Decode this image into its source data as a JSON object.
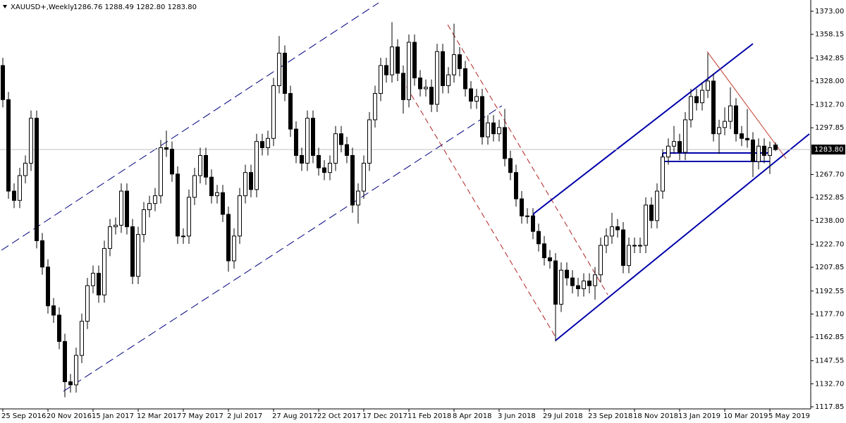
{
  "chart_data": {
    "type": "candlestick",
    "symbol": "XAUUSD+,Weekly",
    "quote": "1286.76 1288.49 1282.80 1283.80",
    "bid": {
      "value": 1283.8,
      "label": "1283.80"
    },
    "categories": [
      "25 Sep 2016",
      null,
      null,
      null,
      null,
      null,
      null,
      null,
      "20 Nov 2016",
      null,
      null,
      null,
      null,
      null,
      null,
      null,
      "15 Jan 2017",
      null,
      null,
      null,
      null,
      null,
      null,
      null,
      "12 Mar 2017",
      null,
      null,
      null,
      null,
      null,
      null,
      null,
      "7 May 2017",
      null,
      null,
      null,
      null,
      null,
      null,
      null,
      "2 Jul 2017",
      null,
      null,
      null,
      null,
      null,
      null,
      null,
      "27 Aug 2017",
      null,
      null,
      null,
      null,
      null,
      null,
      null,
      "22 Oct 2017",
      null,
      null,
      null,
      null,
      null,
      null,
      null,
      "17 Dec 2017",
      null,
      null,
      null,
      null,
      null,
      null,
      null,
      "11 Feb 2018",
      null,
      null,
      null,
      null,
      null,
      null,
      null,
      "8 Apr 2018",
      null,
      null,
      null,
      null,
      null,
      null,
      null,
      "3 Jun 2018",
      null,
      null,
      null,
      null,
      null,
      null,
      null,
      "29 Jul 2018",
      null,
      null,
      null,
      null,
      null,
      null,
      null,
      "23 Sep 2018",
      null,
      null,
      null,
      null,
      null,
      null,
      null,
      "18 Nov 2018",
      null,
      null,
      null,
      null,
      null,
      null,
      null,
      "13 Jan 2019",
      null,
      null,
      null,
      null,
      null,
      null,
      null,
      "10 Mar 2019",
      null,
      null,
      null,
      null,
      null,
      null,
      null,
      "5 May 2019",
      null
    ],
    "open": [
      1338,
      1316,
      1257,
      1251,
      1267,
      1275,
      1304,
      1225,
      1208,
      1183,
      1177,
      1160,
      1134,
      1132,
      1151,
      1173,
      1196,
      1204,
      1190,
      1220,
      1234,
      1235,
      1257,
      1234,
      1202,
      1229,
      1245,
      1249,
      1254,
      1285,
      1284,
      1268,
      1228,
      1228,
      1253,
      1267,
      1280,
      1266,
      1254,
      1256,
      1242,
      1212,
      1228,
      1254,
      1269,
      1258,
      1289,
      1285,
      1291,
      1325,
      1346,
      1320,
      1297,
      1280,
      1275,
      1304,
      1280,
      1272,
      1269,
      1275,
      1294,
      1287,
      1280,
      1248,
      1257,
      1275,
      1303,
      1320,
      1338,
      1332,
      1350,
      1333,
      1316,
      1353,
      1330,
      1323,
      1324,
      1313,
      1347,
      1325,
      1332,
      1345,
      1336,
      1323,
      1315,
      1318,
      1292,
      1301,
      1294,
      1298,
      1278,
      1269,
      1252,
      1241,
      1241,
      1231,
      1223,
      1214,
      1212,
      1184,
      1206,
      1201,
      1196,
      1194,
      1199,
      1196,
      1203,
      1222,
      1228,
      1234,
      1232,
      1209,
      1222,
      1222,
      1222,
      1248,
      1238,
      1257,
      1279,
      1286,
      1289,
      1282,
      1303,
      1318,
      1314,
      1322,
      1328,
      1294,
      1298,
      1302,
      1312,
      1294,
      1291,
      1290,
      1276,
      1286,
      1280,
      1286.76
    ],
    "high": [
      1343,
      1321,
      1262,
      1272,
      1280,
      1309,
      1309,
      1230,
      1213,
      1188,
      1182,
      1165,
      1139,
      1156,
      1178,
      1201,
      1209,
      1209,
      1225,
      1239,
      1240,
      1262,
      1262,
      1239,
      1234,
      1250,
      1254,
      1259,
      1290,
      1296,
      1289,
      1273,
      1233,
      1258,
      1272,
      1285,
      1285,
      1271,
      1261,
      1261,
      1247,
      1233,
      1259,
      1274,
      1274,
      1294,
      1294,
      1296,
      1330,
      1357,
      1351,
      1325,
      1302,
      1285,
      1309,
      1309,
      1285,
      1277,
      1280,
      1299,
      1299,
      1292,
      1285,
      1262,
      1280,
      1308,
      1325,
      1343,
      1343,
      1366,
      1355,
      1338,
      1358,
      1358,
      1335,
      1329,
      1329,
      1352,
      1352,
      1337,
      1365,
      1350,
      1341,
      1328,
      1323,
      1323,
      1306,
      1306,
      1303,
      1310,
      1283,
      1274,
      1257,
      1246,
      1246,
      1236,
      1228,
      1219,
      1217,
      1211,
      1211,
      1206,
      1201,
      1204,
      1204,
      1208,
      1227,
      1233,
      1243,
      1239,
      1237,
      1227,
      1227,
      1227,
      1253,
      1253,
      1262,
      1284,
      1291,
      1299,
      1294,
      1308,
      1323,
      1323,
      1327,
      1346,
      1333,
      1303,
      1311,
      1324,
      1317,
      1299,
      1310,
      1295,
      1291,
      1291,
      1289,
      1288.49
    ],
    "low": [
      1311,
      1252,
      1246,
      1246,
      1262,
      1270,
      1220,
      1203,
      1178,
      1172,
      1155,
      1124,
      1127,
      1127,
      1146,
      1168,
      1191,
      1185,
      1185,
      1215,
      1229,
      1230,
      1229,
      1197,
      1197,
      1224,
      1240,
      1244,
      1249,
      1279,
      1263,
      1223,
      1223,
      1223,
      1248,
      1262,
      1261,
      1249,
      1249,
      1237,
      1205,
      1207,
      1223,
      1249,
      1253,
      1253,
      1280,
      1280,
      1286,
      1320,
      1315,
      1292,
      1275,
      1270,
      1270,
      1275,
      1267,
      1264,
      1264,
      1270,
      1282,
      1275,
      1243,
      1236,
      1252,
      1270,
      1298,
      1315,
      1327,
      1327,
      1328,
      1307,
      1311,
      1325,
      1318,
      1318,
      1308,
      1308,
      1320,
      1320,
      1327,
      1331,
      1318,
      1310,
      1310,
      1287,
      1287,
      1289,
      1289,
      1273,
      1264,
      1247,
      1236,
      1236,
      1226,
      1218,
      1209,
      1207,
      1160,
      1179,
      1196,
      1191,
      1189,
      1189,
      1191,
      1187,
      1198,
      1217,
      1223,
      1227,
      1204,
      1204,
      1217,
      1217,
      1217,
      1233,
      1233,
      1252,
      1274,
      1281,
      1277,
      1277,
      1298,
      1309,
      1309,
      1317,
      1289,
      1281,
      1293,
      1297,
      1289,
      1286,
      1285,
      1266,
      1271,
      1275,
      1268,
      1282.8
    ],
    "close": [
      1316,
      1257,
      1251,
      1267,
      1275,
      1304,
      1225,
      1208,
      1183,
      1177,
      1160,
      1134,
      1132,
      1151,
      1173,
      1196,
      1204,
      1190,
      1220,
      1234,
      1235,
      1257,
      1234,
      1202,
      1229,
      1245,
      1249,
      1254,
      1285,
      1284,
      1268,
      1228,
      1228,
      1253,
      1267,
      1280,
      1266,
      1254,
      1256,
      1242,
      1212,
      1228,
      1254,
      1269,
      1258,
      1289,
      1285,
      1291,
      1325,
      1346,
      1320,
      1297,
      1280,
      1275,
      1304,
      1280,
      1272,
      1269,
      1275,
      1294,
      1287,
      1280,
      1248,
      1257,
      1275,
      1303,
      1320,
      1338,
      1332,
      1350,
      1333,
      1316,
      1353,
      1330,
      1323,
      1324,
      1313,
      1347,
      1325,
      1332,
      1345,
      1336,
      1323,
      1315,
      1318,
      1292,
      1301,
      1294,
      1298,
      1278,
      1269,
      1252,
      1241,
      1241,
      1231,
      1223,
      1214,
      1212,
      1184,
      1206,
      1201,
      1196,
      1194,
      1199,
      1196,
      1203,
      1222,
      1228,
      1234,
      1232,
      1209,
      1222,
      1222,
      1222,
      1248,
      1238,
      1257,
      1279,
      1286,
      1289,
      1282,
      1303,
      1318,
      1314,
      1322,
      1328,
      1294,
      1298,
      1302,
      1312,
      1294,
      1291,
      1290,
      1276,
      1286,
      1280,
      1285,
      1283.8
    ],
    "ylim": [
      1116.49,
      1379.37
    ],
    "yticks": [
      {
        "value": 1117.85,
        "label": "1117.85"
      },
      {
        "value": 1132.7,
        "label": "1132.70"
      },
      {
        "value": 1147.55,
        "label": "1147.55"
      },
      {
        "value": 1162.85,
        "label": "1162.85"
      },
      {
        "value": 1177.7,
        "label": "1177.70"
      },
      {
        "value": 1192.55,
        "label": "1192.55"
      },
      {
        "value": 1207.85,
        "label": "1207.85"
      },
      {
        "value": 1222.7,
        "label": "1222.70"
      },
      {
        "value": 1238,
        "label": "1238.00"
      },
      {
        "value": 1252.85,
        "label": "1252.85"
      },
      {
        "value": 1267.7,
        "label": "1267.70"
      },
      {
        "value": 1297.85,
        "label": "1297.85"
      },
      {
        "value": 1312.7,
        "label": "1312.70"
      },
      {
        "value": 1328,
        "label": "1328.00"
      },
      {
        "value": 1342.85,
        "label": "1342.85"
      },
      {
        "value": 1358.15,
        "label": "1358.15"
      },
      {
        "value": 1373,
        "label": "1373.00"
      }
    ],
    "bull_color": "#ffffff",
    "bear_color": "#000000"
  }
}
